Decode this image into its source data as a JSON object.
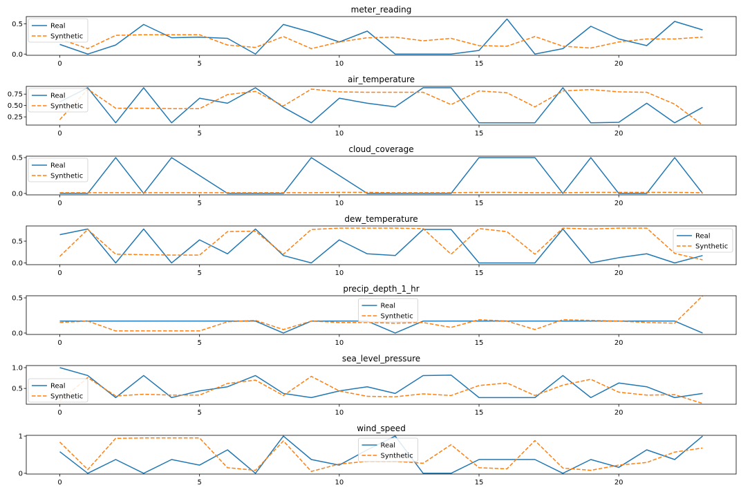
{
  "colors": {
    "real": "#1f77b4",
    "synthetic": "#ff7f0e"
  },
  "legend": {
    "real": "Real",
    "synthetic": "Synthetic"
  },
  "chart_data": [
    {
      "type": "line",
      "title": "meter_reading",
      "x": [
        0,
        1,
        2,
        3,
        4,
        5,
        6,
        7,
        8,
        9,
        10,
        11,
        12,
        13,
        14,
        15,
        16,
        17,
        18,
        19,
        20,
        21,
        22,
        23
      ],
      "xticks": [
        0,
        5,
        10,
        15,
        20
      ],
      "ylim": [
        -0.02,
        0.62
      ],
      "yticks": [
        0.0,
        0.5
      ],
      "ytick_labels": [
        "0.0",
        "0.5"
      ],
      "legend_position": "top-left",
      "series": [
        {
          "name": "Real",
          "style": "solid",
          "values": [
            0.16,
            0.0,
            0.15,
            0.49,
            0.27,
            0.28,
            0.26,
            0.0,
            0.49,
            0.36,
            0.2,
            0.38,
            0.0,
            0.0,
            0.0,
            0.06,
            0.58,
            0.0,
            0.09,
            0.46,
            0.25,
            0.14,
            0.54,
            0.4
          ]
        },
        {
          "name": "Synthetic",
          "style": "dashed",
          "values": [
            0.25,
            0.09,
            0.31,
            0.32,
            0.32,
            0.32,
            0.15,
            0.11,
            0.29,
            0.09,
            0.2,
            0.27,
            0.28,
            0.22,
            0.26,
            0.14,
            0.13,
            0.29,
            0.13,
            0.1,
            0.2,
            0.25,
            0.25,
            0.28
          ]
        }
      ]
    },
    {
      "type": "line",
      "title": "air_temperature",
      "x": [
        0,
        1,
        2,
        3,
        4,
        5,
        6,
        7,
        8,
        9,
        10,
        11,
        12,
        13,
        14,
        15,
        16,
        17,
        18,
        19,
        20,
        21,
        22,
        23
      ],
      "xticks": [
        0,
        5,
        10,
        15,
        20
      ],
      "ylim": [
        0.07,
        0.92
      ],
      "yticks": [
        0.25,
        0.5,
        0.75
      ],
      "ytick_labels": [
        "0.25",
        "0.50",
        "0.75"
      ],
      "legend_position": "top-left",
      "series": [
        {
          "name": "Real",
          "style": "solid",
          "values": [
            0.58,
            0.89,
            0.12,
            0.89,
            0.12,
            0.66,
            0.55,
            0.89,
            0.46,
            0.12,
            0.66,
            0.55,
            0.47,
            0.89,
            0.89,
            0.12,
            0.12,
            0.12,
            0.89,
            0.12,
            0.13,
            0.55,
            0.12,
            0.46
          ]
        },
        {
          "name": "Synthetic",
          "style": "dashed",
          "values": [
            0.19,
            0.86,
            0.44,
            0.44,
            0.43,
            0.43,
            0.74,
            0.81,
            0.49,
            0.86,
            0.8,
            0.79,
            0.79,
            0.79,
            0.52,
            0.82,
            0.78,
            0.47,
            0.82,
            0.85,
            0.8,
            0.79,
            0.53,
            0.07
          ]
        }
      ]
    },
    {
      "type": "line",
      "title": "cloud_coverage",
      "x": [
        0,
        1,
        2,
        3,
        4,
        5,
        6,
        7,
        8,
        9,
        10,
        11,
        12,
        13,
        14,
        15,
        16,
        17,
        18,
        19,
        20,
        21,
        22,
        23
      ],
      "xticks": [
        0,
        5,
        10,
        15,
        20
      ],
      "ylim": [
        -0.02,
        0.52
      ],
      "yticks": [
        0.0,
        0.5
      ],
      "ytick_labels": [
        "0.0",
        "0.5"
      ],
      "legend_position": "top-left",
      "series": [
        {
          "name": "Real",
          "style": "solid",
          "values": [
            0.0,
            0.0,
            0.5,
            0.0,
            0.5,
            0.25,
            0.0,
            0.0,
            0.0,
            0.5,
            0.25,
            0.0,
            0.0,
            0.0,
            0.0,
            0.5,
            0.5,
            0.5,
            0.0,
            0.5,
            0.0,
            0.0,
            0.5,
            0.0
          ]
        },
        {
          "name": "Synthetic",
          "style": "dashed",
          "values": [
            0.01,
            0.01,
            0.01,
            0.01,
            0.01,
            0.01,
            0.01,
            0.01,
            0.01,
            0.01,
            0.015,
            0.015,
            0.01,
            0.01,
            0.01,
            0.015,
            0.015,
            0.01,
            0.01,
            0.015,
            0.015,
            0.015,
            0.015,
            0.01
          ]
        }
      ]
    },
    {
      "type": "line",
      "title": "dew_temperature",
      "x": [
        0,
        1,
        2,
        3,
        4,
        5,
        6,
        7,
        8,
        9,
        10,
        11,
        12,
        13,
        14,
        15,
        16,
        17,
        18,
        19,
        20,
        21,
        22,
        23
      ],
      "xticks": [
        0,
        5,
        10,
        15,
        20
      ],
      "ylim": [
        -0.04,
        0.85
      ],
      "yticks": [
        0.0,
        0.5
      ],
      "ytick_labels": [
        "0.0",
        "0.5"
      ],
      "legend_position": "top-right",
      "series": [
        {
          "name": "Real",
          "style": "solid",
          "values": [
            0.65,
            0.78,
            0.0,
            0.78,
            0.0,
            0.53,
            0.21,
            0.78,
            0.17,
            0.0,
            0.53,
            0.21,
            0.17,
            0.77,
            0.77,
            0.0,
            0.0,
            0.0,
            0.78,
            0.0,
            0.12,
            0.21,
            0.0,
            0.17
          ]
        },
        {
          "name": "Synthetic",
          "style": "dashed",
          "values": [
            0.15,
            0.77,
            0.2,
            0.19,
            0.18,
            0.18,
            0.72,
            0.73,
            0.2,
            0.77,
            0.8,
            0.8,
            0.8,
            0.79,
            0.2,
            0.79,
            0.72,
            0.2,
            0.8,
            0.78,
            0.8,
            0.8,
            0.22,
            0.07
          ]
        }
      ]
    },
    {
      "type": "line",
      "title": "precip_depth_1_hr",
      "x": [
        0,
        1,
        2,
        3,
        4,
        5,
        6,
        7,
        8,
        9,
        10,
        11,
        12,
        13,
        14,
        15,
        16,
        17,
        18,
        19,
        20,
        21,
        22,
        23
      ],
      "xticks": [
        0,
        5,
        10,
        15,
        20
      ],
      "ylim": [
        -0.02,
        0.53
      ],
      "yticks": [
        0.0,
        0.5
      ],
      "ytick_labels": [
        "0.0",
        "0.5"
      ],
      "legend_position": "top-center",
      "series": [
        {
          "name": "Real",
          "style": "solid",
          "values": [
            0.17,
            0.17,
            0.17,
            0.17,
            0.17,
            0.17,
            0.17,
            0.17,
            0.0,
            0.17,
            0.17,
            0.17,
            0.0,
            0.17,
            0.17,
            0.17,
            0.17,
            0.17,
            0.17,
            0.17,
            0.17,
            0.17,
            0.17,
            0.0
          ]
        },
        {
          "name": "Synthetic",
          "style": "dashed",
          "values": [
            0.15,
            0.17,
            0.03,
            0.03,
            0.03,
            0.03,
            0.16,
            0.18,
            0.05,
            0.17,
            0.15,
            0.15,
            0.14,
            0.15,
            0.08,
            0.19,
            0.17,
            0.05,
            0.19,
            0.18,
            0.17,
            0.15,
            0.14,
            0.53
          ]
        }
      ]
    },
    {
      "type": "line",
      "title": "sea_level_pressure",
      "x": [
        0,
        1,
        2,
        3,
        4,
        5,
        6,
        7,
        8,
        9,
        10,
        11,
        12,
        13,
        14,
        15,
        16,
        17,
        18,
        19,
        20,
        21,
        22,
        23
      ],
      "xticks": [
        0,
        5,
        10,
        15,
        20
      ],
      "ylim": [
        0.12,
        1.05
      ],
      "yticks": [
        0.5,
        1.0
      ],
      "ytick_labels": [
        "0.5",
        "1.0"
      ],
      "legend_position": "center-left",
      "series": [
        {
          "name": "Real",
          "style": "solid",
          "values": [
            1.0,
            0.81,
            0.28,
            0.81,
            0.28,
            0.44,
            0.54,
            0.81,
            0.38,
            0.28,
            0.44,
            0.54,
            0.38,
            0.81,
            0.82,
            0.28,
            0.28,
            0.28,
            0.81,
            0.28,
            0.63,
            0.54,
            0.28,
            0.38
          ]
        },
        {
          "name": "Synthetic",
          "style": "dashed",
          "values": [
            0.2,
            0.76,
            0.32,
            0.36,
            0.34,
            0.34,
            0.62,
            0.7,
            0.33,
            0.79,
            0.44,
            0.31,
            0.3,
            0.37,
            0.33,
            0.57,
            0.63,
            0.33,
            0.58,
            0.72,
            0.41,
            0.34,
            0.35,
            0.14
          ]
        }
      ]
    },
    {
      "type": "line",
      "title": "wind_speed",
      "x": [
        0,
        1,
        2,
        3,
        4,
        5,
        6,
        7,
        8,
        9,
        10,
        11,
        12,
        13,
        14,
        15,
        16,
        17,
        18,
        19,
        20,
        21,
        22,
        23
      ],
      "xticks": [
        0,
        5,
        10,
        15,
        20
      ],
      "ylim": [
        -0.02,
        1.02
      ],
      "yticks": [
        0,
        1
      ],
      "ytick_labels": [
        "0",
        "1"
      ],
      "legend_position": "top-center",
      "series": [
        {
          "name": "Real",
          "style": "solid",
          "values": [
            0.58,
            0.0,
            0.37,
            0.0,
            0.37,
            0.22,
            0.63,
            0.0,
            1.0,
            0.37,
            0.22,
            0.63,
            1.0,
            0.0,
            0.0,
            0.37,
            0.37,
            0.37,
            0.0,
            0.37,
            0.16,
            0.63,
            0.37,
            1.0
          ]
        },
        {
          "name": "Synthetic",
          "style": "dashed",
          "values": [
            0.84,
            0.1,
            0.94,
            0.95,
            0.95,
            0.95,
            0.15,
            0.08,
            0.87,
            0.05,
            0.25,
            0.32,
            0.32,
            0.27,
            0.77,
            0.15,
            0.12,
            0.88,
            0.14,
            0.08,
            0.22,
            0.29,
            0.57,
            0.68
          ]
        }
      ]
    }
  ]
}
